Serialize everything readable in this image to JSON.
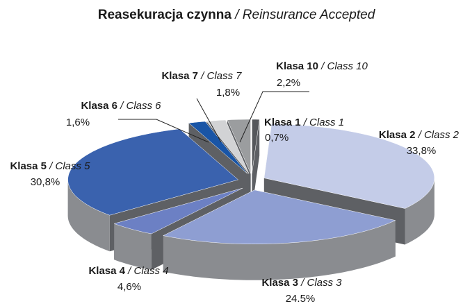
{
  "chart_data": {
    "type": "pie3d",
    "title": "Reasekuracja czynna",
    "title_en": "/ Reinsurance Accepted",
    "categories": [
      "Klasa 1",
      "Klasa 2",
      "Klasa 3",
      "Klasa 4",
      "Klasa 5",
      "Klasa 6",
      "Klasa 7",
      "Klasa 10"
    ],
    "categories_en": [
      "/ Class 1",
      "/ Class 2",
      "/ Class 3",
      "/ Class 4",
      "/ Class 5",
      "/ Class 6",
      "/ Class 7",
      "/ Class 10"
    ],
    "values": [
      0.7,
      33.8,
      24.5,
      4.6,
      30.8,
      1.6,
      1.8,
      2.2
    ],
    "value_labels": [
      "0,7%",
      "33,8%",
      "24.5%",
      "4,6%",
      "30,8%",
      "1,6%",
      "1,8%",
      "2,2%"
    ],
    "colors": [
      "#55575b",
      "#c4cce8",
      "#8e9ed2",
      "#6c80c4",
      "#3a62ae",
      "#1955a6",
      "#d2d3d5",
      "#9b9d9f"
    ]
  }
}
